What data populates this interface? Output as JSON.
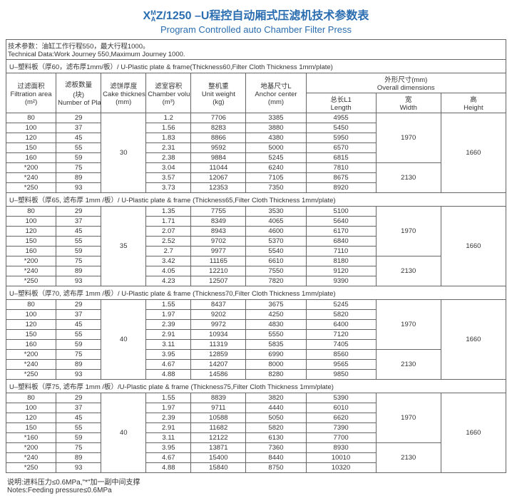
{
  "title_cn": "Z/1250 –U程控自动厢式压滤机技术参数表",
  "title_prefix": "X",
  "title_sup_top": "M",
  "title_sup_bot": "A",
  "title_en": "Program Controlled auto Chamber Filter Press",
  "tech_cn": "技术参数：油缸工作行程550，最大行程1000。",
  "tech_en": "Technical Data:Work Journey 550,Maximum Journey 1000.",
  "headers": {
    "area_cn": "过滤面积",
    "area_en": "Filtration area",
    "area_unit": "(m²)",
    "plate_cn": "滤板数量",
    "plate_unit": "(块)",
    "plate_en": "Number of Plate",
    "cake_cn": "滤饼厚度",
    "cake_en": "Cake thickness",
    "cake_unit": "(mm)",
    "vol_cn": "滤室容积",
    "vol_en": "Chamber volume",
    "vol_unit": "(m³)",
    "wt_cn": "整机重",
    "wt_en": "Unit weight",
    "wt_unit": "(kg)",
    "anchor_cn": "地基尺寸L",
    "anchor_en": "Anchor center",
    "anchor_unit": "(mm)",
    "dim_cn": "外形尺寸(mm)",
    "dim_en": "Overall   dimensions",
    "len_cn": "总长L1",
    "len_en": "Length",
    "wid_cn": "宽",
    "wid_en": "Width",
    "hgt_cn": "高",
    "hgt_en": "Height"
  },
  "sections": [
    {
      "header": "U–塑料板（厚60，滤布厚1mm/板）/ U-Plastic plate & frame(Thickness60,Filter Cloth Thickness 1mm/plate)",
      "cake": "30",
      "width_a": "1970",
      "width_b": "2130",
      "height": "1660",
      "rows": [
        {
          "area": "80",
          "plate": "29",
          "vol": "1.2",
          "wt": "7706",
          "anchor": "3385",
          "len": "4955"
        },
        {
          "area": "100",
          "plate": "37",
          "vol": "1.56",
          "wt": "8283",
          "anchor": "3880",
          "len": "5450"
        },
        {
          "area": "120",
          "plate": "45",
          "vol": "1.83",
          "wt": "8866",
          "anchor": "4380",
          "len": "5950"
        },
        {
          "area": "150",
          "plate": "55",
          "vol": "2.31",
          "wt": "9592",
          "anchor": "5000",
          "len": "6570"
        },
        {
          "area": "160",
          "plate": "59",
          "vol": "2.38",
          "wt": "9884",
          "anchor": "5245",
          "len": "6815"
        },
        {
          "area": "*200",
          "plate": "75",
          "vol": "3.04",
          "wt": "11044",
          "anchor": "6240",
          "len": "7810"
        },
        {
          "area": "*240",
          "plate": "89",
          "vol": "3.57",
          "wt": "12067",
          "anchor": "7105",
          "len": "8675"
        },
        {
          "area": "*250",
          "plate": "93",
          "vol": "3.73",
          "wt": "12353",
          "anchor": "7350",
          "len": "8920"
        }
      ]
    },
    {
      "header": "U–塑料板（厚65, 滤布厚 1mm /板）/ U-Plastic plate & frame (Thickness65,Filter Cloth Thickness 1mm/plate)",
      "cake": "35",
      "width_a": "1970",
      "width_b": "2130",
      "height": "1660",
      "rows": [
        {
          "area": "80",
          "plate": "29",
          "vol": "1.35",
          "wt": "7755",
          "anchor": "3530",
          "len": "5100"
        },
        {
          "area": "100",
          "plate": "37",
          "vol": "1.71",
          "wt": "8349",
          "anchor": "4065",
          "len": "5640"
        },
        {
          "area": "120",
          "plate": "45",
          "vol": "2.07",
          "wt": "8943",
          "anchor": "4600",
          "len": "6170"
        },
        {
          "area": "150",
          "plate": "55",
          "vol": "2.52",
          "wt": "9702",
          "anchor": "5370",
          "len": "6840"
        },
        {
          "area": "160",
          "plate": "59",
          "vol": "2.7",
          "wt": "9977",
          "anchor": "5540",
          "len": "7110"
        },
        {
          "area": "*200",
          "plate": "75",
          "vol": "3.42",
          "wt": "11165",
          "anchor": "6610",
          "len": "8180"
        },
        {
          "area": "*240",
          "plate": "89",
          "vol": "4.05",
          "wt": "12210",
          "anchor": "7550",
          "len": "9120"
        },
        {
          "area": "*250",
          "plate": "93",
          "vol": "4.23",
          "wt": "12507",
          "anchor": "7820",
          "len": "9390"
        }
      ]
    },
    {
      "header": "U–塑料板（厚70, 滤布厚 1mm /板）/ U-Plastic plate & frame (Thickness70,Filter Cloth Thickness 1mm/plate)",
      "cake": "40",
      "width_a": "1970",
      "width_b": "2130",
      "height": "1660",
      "rows": [
        {
          "area": "80",
          "plate": "29",
          "vol": "1.55",
          "wt": "8437",
          "anchor": "3675",
          "len": "5245"
        },
        {
          "area": "100",
          "plate": "37",
          "vol": "1.97",
          "wt": "9202",
          "anchor": "4250",
          "len": "5820"
        },
        {
          "area": "120",
          "plate": "45",
          "vol": "2.39",
          "wt": "9972",
          "anchor": "4830",
          "len": "6400"
        },
        {
          "area": "150",
          "plate": "55",
          "vol": "2.91",
          "wt": "10934",
          "anchor": "5550",
          "len": "7120"
        },
        {
          "area": "160",
          "plate": "59",
          "vol": "3.11",
          "wt": "11319",
          "anchor": "5835",
          "len": "7405"
        },
        {
          "area": "*200",
          "plate": "75",
          "vol": "3.95",
          "wt": "12859",
          "anchor": "6990",
          "len": "8560"
        },
        {
          "area": "*240",
          "plate": "89",
          "vol": "4.67",
          "wt": "14207",
          "anchor": "8000",
          "len": "9565"
        },
        {
          "area": "*250",
          "plate": "93",
          "vol": "4.88",
          "wt": "14586",
          "anchor": "8280",
          "len": "9850"
        }
      ]
    },
    {
      "header": "U–塑料板（厚75, 滤布厚 1mm /板）/U-Plastic plate & frame (Thickness75,Filter Cloth Thickness 1mm/plate)",
      "cake": "40",
      "width_a": "1970",
      "width_b": "2130",
      "height": "1660",
      "rows": [
        {
          "area": "80",
          "plate": "29",
          "vol": "1.55",
          "wt": "8839",
          "anchor": "3820",
          "len": "5390"
        },
        {
          "area": "100",
          "plate": "37",
          "vol": "1.97",
          "wt": "9711",
          "anchor": "4440",
          "len": "6010"
        },
        {
          "area": "120",
          "plate": "45",
          "vol": "2.39",
          "wt": "10588",
          "anchor": "5050",
          "len": "6620"
        },
        {
          "area": "150",
          "plate": "55",
          "vol": "2.91",
          "wt": "11682",
          "anchor": "5820",
          "len": "7390"
        },
        {
          "area": "*160",
          "plate": "59",
          "vol": "3.11",
          "wt": "12122",
          "anchor": "6130",
          "len": "7700"
        },
        {
          "area": "*200",
          "plate": "75",
          "vol": "3.95",
          "wt": "13871",
          "anchor": "7360",
          "len": "8930"
        },
        {
          "area": "*240",
          "plate": "89",
          "vol": "4.67",
          "wt": "15400",
          "anchor": "8440",
          "len": "10010"
        },
        {
          "area": "*250",
          "plate": "93",
          "vol": "4.88",
          "wt": "15840",
          "anchor": "8750",
          "len": "10320"
        }
      ]
    }
  ],
  "notes_cn": "说明:进料压力≤0.6MPa,\"*\"加一副中间支撑",
  "notes_en": "Notes:Feeding pressure≤0.6MPa"
}
